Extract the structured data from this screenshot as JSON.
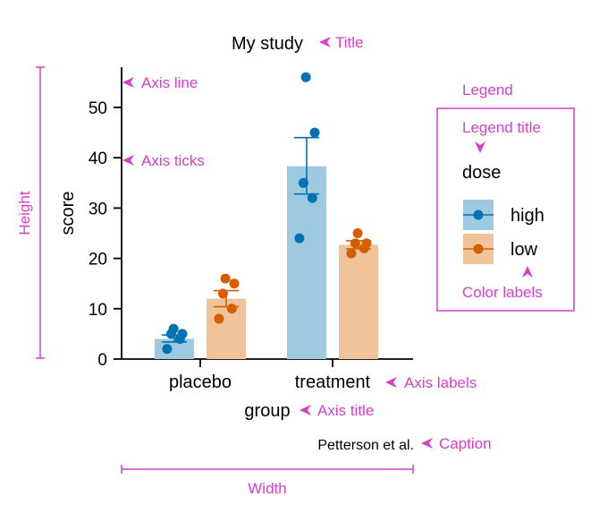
{
  "chart_data": {
    "type": "bar",
    "title": "My study",
    "xlabel": "group",
    "ylabel": "score",
    "caption": "Petterson et al.",
    "categories": [
      "placebo",
      "treatment"
    ],
    "ylim": [
      0,
      58
    ],
    "yticks": [
      0,
      10,
      20,
      30,
      40,
      50
    ],
    "grid": false,
    "legend": {
      "title": "dose",
      "placement": "right"
    },
    "series": [
      {
        "name": "high",
        "color": "#0072b2",
        "bar_color": "#9ecae1",
        "values": [
          4,
          38.3
        ],
        "error_low": [
          3.4,
          32.8
        ],
        "error_high": [
          4.8,
          44.0
        ],
        "points": [
          [
            2,
            4,
            5,
            5,
            6
          ],
          [
            24,
            32,
            35,
            45,
            56
          ]
        ]
      },
      {
        "name": "low",
        "color": "#d55e00",
        "bar_color": "#f0c39a",
        "values": [
          12,
          22.7
        ],
        "error_low": [
          10.4,
          21.9
        ],
        "error_high": [
          13.6,
          23.5
        ],
        "points": [
          [
            8,
            10,
            13,
            15,
            16
          ],
          [
            21,
            22,
            23,
            23,
            25
          ]
        ]
      }
    ]
  },
  "annotations": {
    "title": "Title",
    "axis_line": "Axis line",
    "axis_ticks": "Axis ticks",
    "height": "Height",
    "legend": "Legend",
    "legend_title": "Legend title",
    "color_labels": "Color labels",
    "axis_labels": "Axis labels",
    "axis_title": "Axis title",
    "caption": "Caption",
    "width": "Width"
  },
  "colors": {
    "annotation": "#d63fc6",
    "axis": "#000000"
  }
}
